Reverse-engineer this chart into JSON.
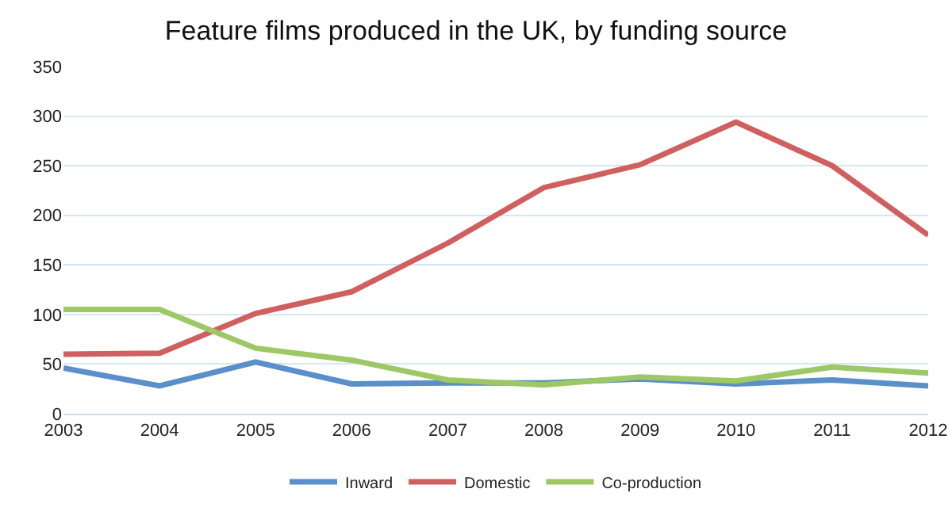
{
  "chart_data": {
    "type": "line",
    "title": "Feature films produced in the UK, by funding source",
    "categories": [
      "2003",
      "2004",
      "2005",
      "2006",
      "2007",
      "2008",
      "2009",
      "2010",
      "2011",
      "2012"
    ],
    "series": [
      {
        "name": "Inward",
        "color": "#5b8fc9",
        "values": [
          46,
          28,
          52,
          30,
          31,
          31,
          35,
          30,
          34,
          28
        ]
      },
      {
        "name": "Domestic",
        "color": "#d0605f",
        "values": [
          60,
          61,
          101,
          123,
          172,
          228,
          251,
          294,
          250,
          180
        ]
      },
      {
        "name": "Co-production",
        "color": "#9dc865",
        "values": [
          105,
          105,
          66,
          54,
          34,
          29,
          37,
          33,
          47,
          41
        ]
      }
    ],
    "ylim": [
      0,
      350
    ],
    "yticks": [
      0,
      50,
      100,
      150,
      200,
      250,
      300,
      350
    ],
    "grid": "y",
    "legend": "bottom",
    "marker": "none",
    "line_style": "solid"
  }
}
